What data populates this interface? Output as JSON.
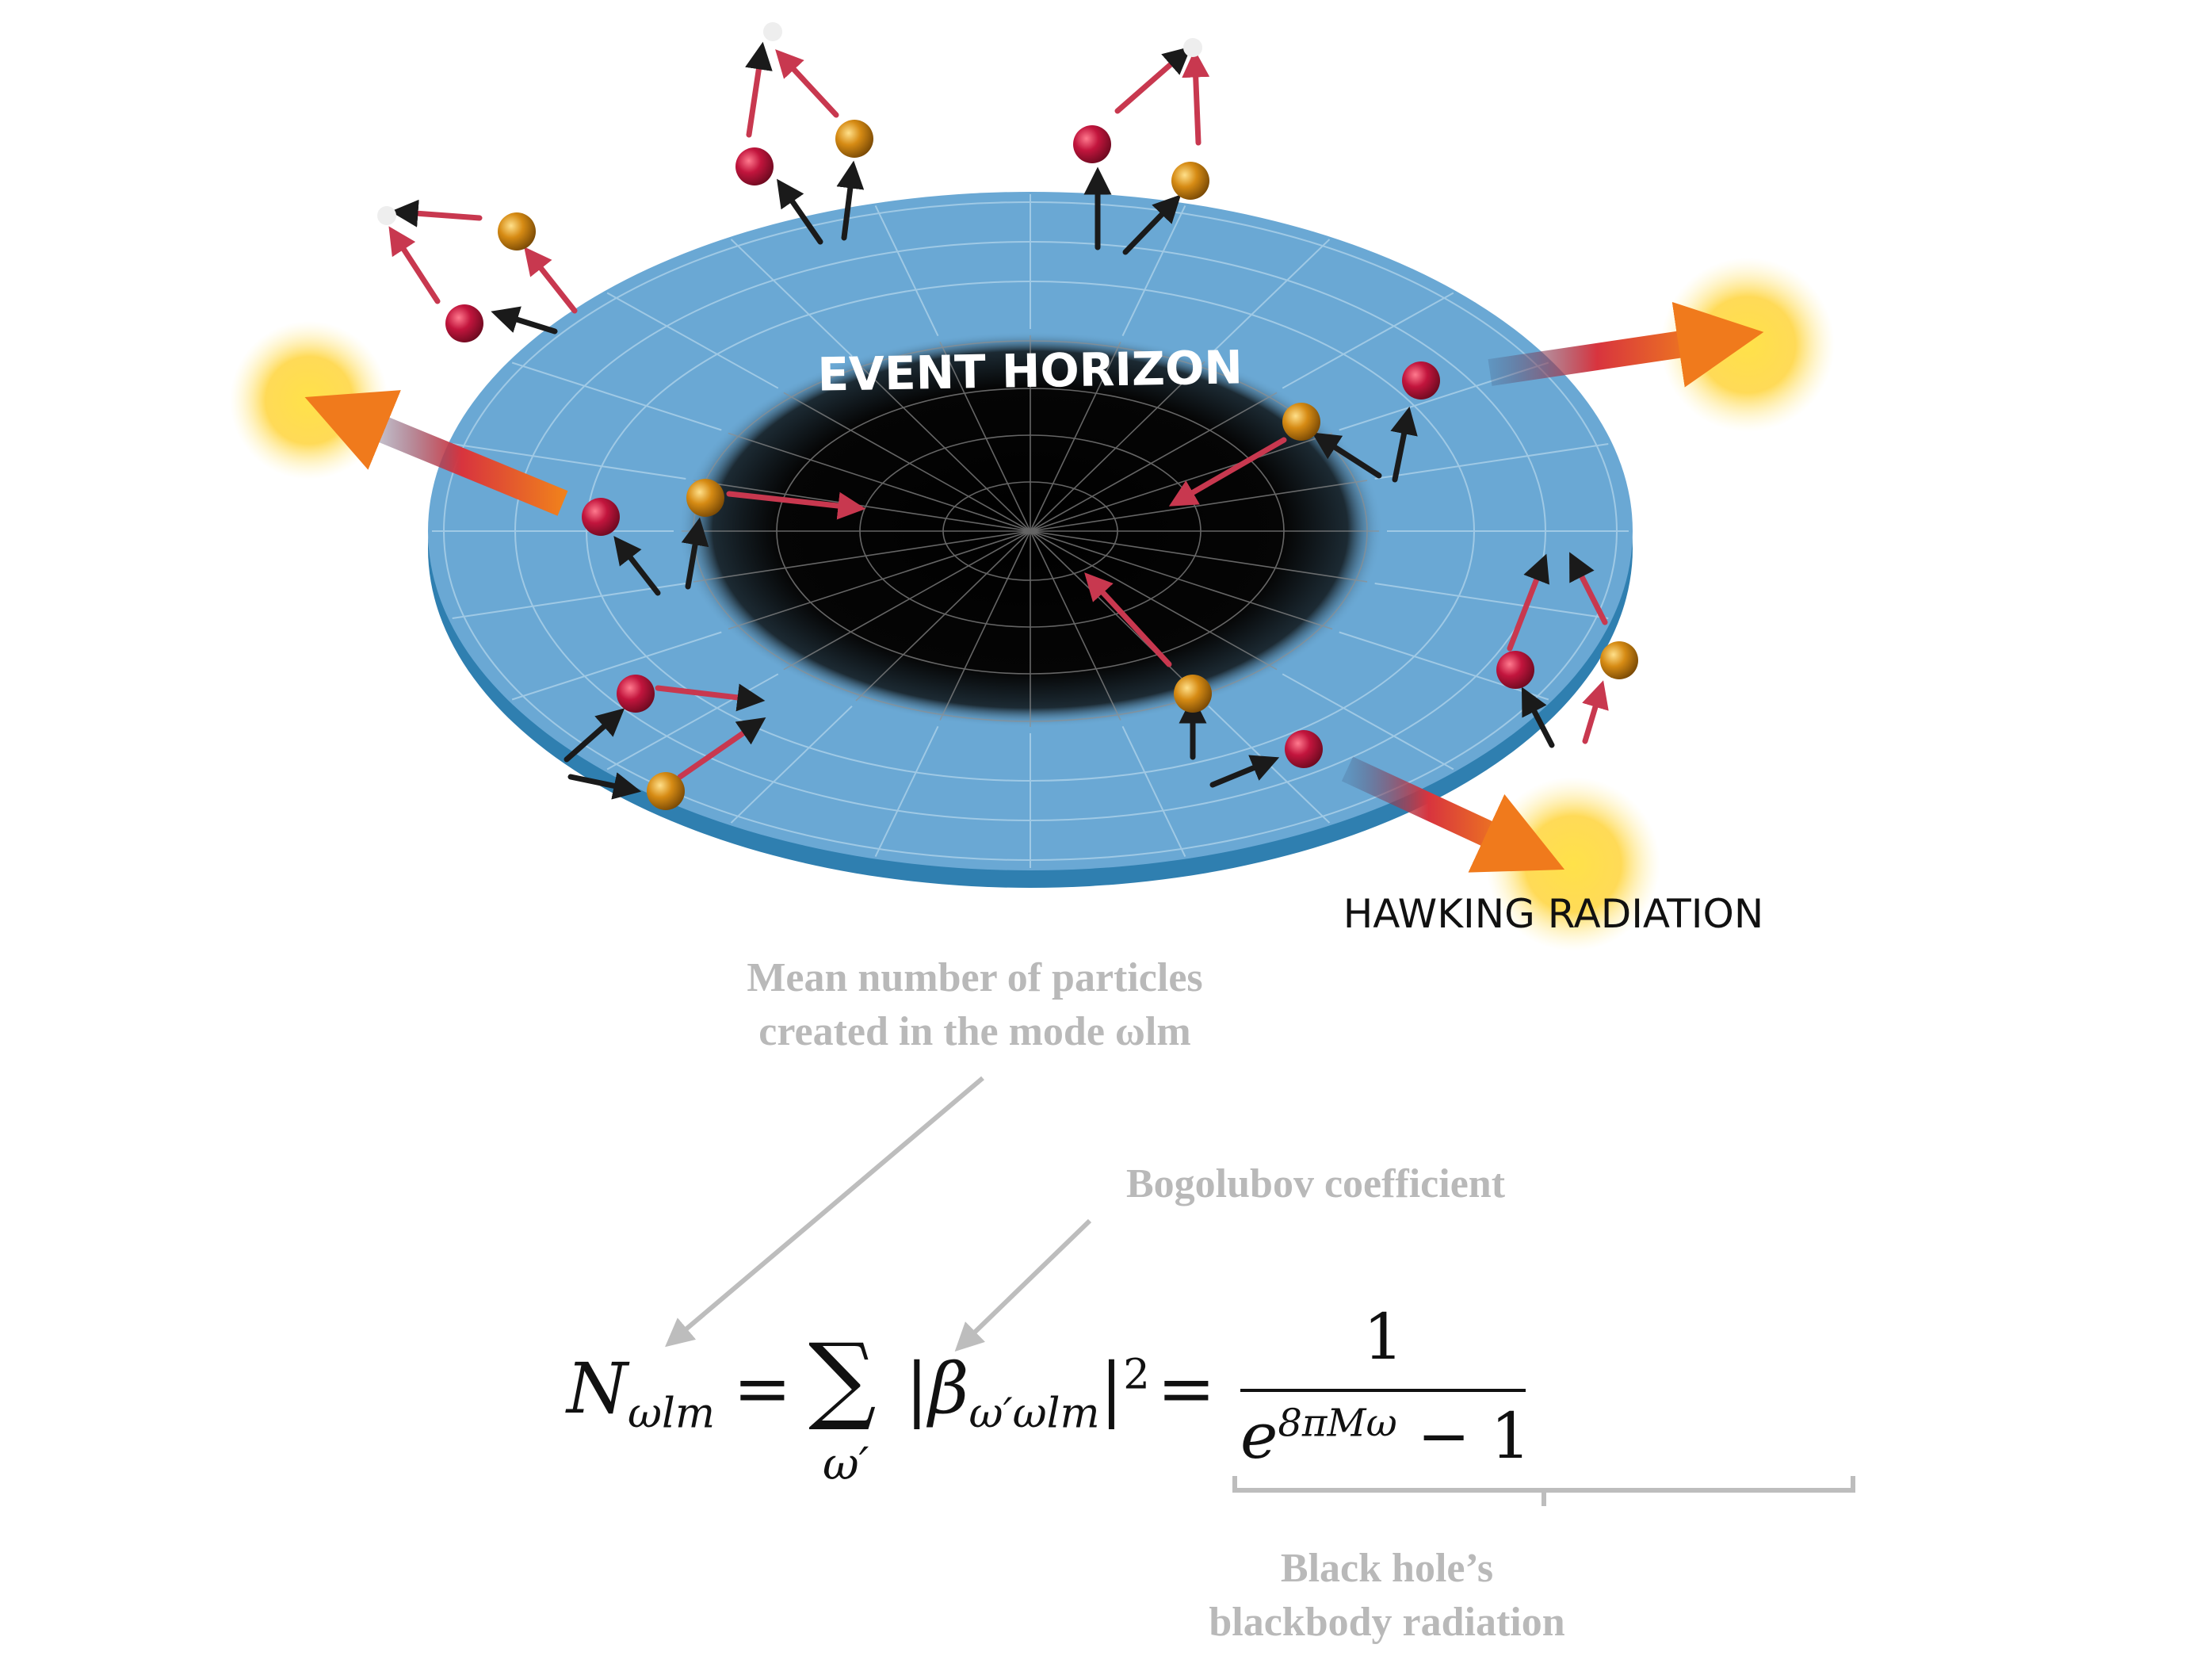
{
  "diagram": {
    "event_horizon_label": "EVENT HORIZON",
    "hawking_radiation_label": "HAWKING RADIATION",
    "colors": {
      "disk": "#6aa8d4",
      "disk_edge": "#2f7fb0",
      "horizon": "#000000",
      "particle_red": "#c2153d",
      "particle_orange": "#d68b14",
      "arrow_red": "#c8384f",
      "arrow_dark": "#1a1a1a",
      "glow": "#ffd23c",
      "big_arrow": "#f07a1c"
    }
  },
  "annotations": {
    "mean_number": [
      "Mean number of particles",
      "created in the mode ωlm"
    ],
    "bogolubov": "Bogolubov coefficient",
    "blackbody": [
      "Black hole’s",
      "blackbody radiation"
    ]
  },
  "equation": {
    "lhs": "N",
    "lhs_sub": "ωlm",
    "equals": "=",
    "sum": "∑",
    "sum_under": "ω′",
    "beta": "β",
    "beta_sub": "ω′ωlm",
    "square": "2",
    "numerator": "1",
    "exp_base": "e",
    "exp_power": "8πMω",
    "minus_one": "− 1"
  }
}
